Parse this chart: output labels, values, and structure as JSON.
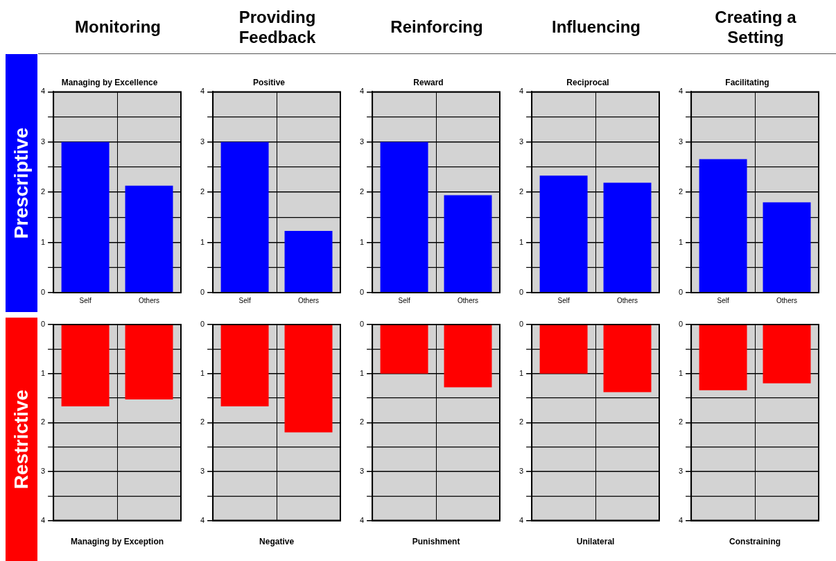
{
  "chart_data": [
    {
      "type": "bar",
      "title": "Monitoring",
      "subtitle": "Managing by Excellence",
      "ylabel": "Prescriptive",
      "categories": [
        "Self",
        "Others"
      ],
      "series": [
        {
          "color": "#0000ff",
          "values": [
            3.0,
            2.13
          ]
        }
      ],
      "ylim": [
        0,
        4
      ],
      "yticks": [
        0,
        {
          "value": 0.5,
          "label": null
        },
        1,
        {
          "value": 1.5,
          "label": null
        },
        2,
        {
          "value": 2.5,
          "label": null
        },
        3,
        {
          "value": 3.5,
          "label": null
        },
        4
      ],
      "grid": true
    },
    {
      "type": "bar",
      "title": "Providing Feedback",
      "subtitle": "Positive",
      "categories": [
        "Self",
        "Others"
      ],
      "series": [
        {
          "color": "#0000ff",
          "values": [
            3.0,
            1.23
          ]
        }
      ],
      "ylim": [
        0,
        4
      ],
      "yticks": [
        0,
        {
          "value": 0.5,
          "label": null
        },
        1,
        {
          "value": 1.5,
          "label": null
        },
        2,
        {
          "value": 2.5,
          "label": null
        },
        3,
        {
          "value": 3.5,
          "label": null
        },
        4
      ],
      "grid": true
    },
    {
      "type": "bar",
      "title": "Reinforcing",
      "subtitle": "Reward",
      "categories": [
        "Self",
        "Others"
      ],
      "series": [
        {
          "color": "#0000ff",
          "values": [
            3.0,
            1.94
          ]
        }
      ],
      "ylim": [
        0,
        4
      ],
      "yticks": [
        0,
        {
          "value": 0.5,
          "label": null
        },
        1,
        {
          "value": 1.5,
          "label": null
        },
        2,
        {
          "value": 2.5,
          "label": null
        },
        3,
        {
          "value": 3.5,
          "label": null
        },
        4
      ],
      "grid": true
    },
    {
      "type": "bar",
      "title": "Influencing",
      "subtitle": "Reciprocal",
      "categories": [
        "Self",
        "Others"
      ],
      "series": [
        {
          "color": "#0000ff",
          "values": [
            2.33,
            2.19
          ]
        }
      ],
      "ylim": [
        0,
        4
      ],
      "yticks": [
        0,
        {
          "value": 0.5,
          "label": null
        },
        1,
        {
          "value": 1.5,
          "label": null
        },
        2,
        {
          "value": 2.5,
          "label": null
        },
        3,
        {
          "value": 3.5,
          "label": null
        },
        4
      ],
      "grid": true
    },
    {
      "type": "bar",
      "title": "Creating a Setting",
      "subtitle": "Facilitating",
      "categories": [
        "Self",
        "Others"
      ],
      "series": [
        {
          "color": "#0000ff",
          "values": [
            2.66,
            1.8
          ]
        }
      ],
      "ylim": [
        0,
        4
      ],
      "yticks": [
        0,
        {
          "value": 0.5,
          "label": null
        },
        1,
        {
          "value": 1.5,
          "label": null
        },
        2,
        {
          "value": 2.5,
          "label": null
        },
        3,
        {
          "value": 3.5,
          "label": null
        },
        4
      ],
      "grid": true
    },
    {
      "type": "bar",
      "xlabel": "Managing by Exception",
      "ylabel": "Restrictive",
      "categories": [
        null,
        null
      ],
      "series": [
        {
          "color": "#ff0000",
          "values": [
            1.67,
            1.53
          ]
        }
      ],
      "ylim": [
        4,
        0
      ],
      "yticks": [
        0,
        {
          "value": 0.5,
          "label": null
        },
        1,
        {
          "value": 1.5,
          "label": null
        },
        2,
        {
          "value": 2.5,
          "label": null
        },
        3,
        {
          "value": 3.5,
          "label": null
        },
        4
      ],
      "grid": true
    },
    {
      "type": "bar",
      "xlabel": "Negative",
      "categories": [
        null,
        null
      ],
      "series": [
        {
          "color": "#ff0000",
          "values": [
            1.67,
            2.2
          ]
        }
      ],
      "ylim": [
        4,
        0
      ],
      "yticks": [
        0,
        {
          "value": 0.5,
          "label": null
        },
        1,
        {
          "value": 1.5,
          "label": null
        },
        2,
        {
          "value": 2.5,
          "label": null
        },
        3,
        {
          "value": 3.5,
          "label": null
        },
        4
      ],
      "grid": true
    },
    {
      "type": "bar",
      "xlabel": "Punishment",
      "categories": [
        null,
        null
      ],
      "series": [
        {
          "color": "#ff0000",
          "values": [
            1.0,
            1.28
          ]
        }
      ],
      "ylim": [
        4,
        0
      ],
      "yticks": [
        0,
        {
          "value": 0.5,
          "label": null
        },
        1,
        {
          "value": 1.5,
          "label": null
        },
        2,
        {
          "value": 2.5,
          "label": null
        },
        3,
        {
          "value": 3.5,
          "label": null
        },
        4
      ],
      "grid": true
    },
    {
      "type": "bar",
      "xlabel": "Unilateral",
      "categories": [
        null,
        null
      ],
      "series": [
        {
          "color": "#ff0000",
          "values": [
            1.0,
            1.38
          ]
        }
      ],
      "ylim": [
        4,
        0
      ],
      "yticks": [
        0,
        {
          "value": 0.5,
          "label": null
        },
        1,
        {
          "value": 1.5,
          "label": null
        },
        2,
        {
          "value": 2.5,
          "label": null
        },
        3,
        {
          "value": 3.5,
          "label": null
        },
        4
      ],
      "grid": true
    },
    {
      "type": "bar",
      "xlabel": "Constraining",
      "categories": [
        null,
        null
      ],
      "series": [
        {
          "color": "#ff0000",
          "values": [
            1.34,
            1.2
          ]
        }
      ],
      "ylim": [
        4,
        0
      ],
      "yticks": [
        0,
        {
          "value": 0.5,
          "label": null
        },
        1,
        {
          "value": 1.5,
          "label": null
        },
        2,
        {
          "value": 2.5,
          "label": null
        },
        3,
        {
          "value": 3.5,
          "label": null
        },
        4
      ],
      "grid": true
    }
  ]
}
